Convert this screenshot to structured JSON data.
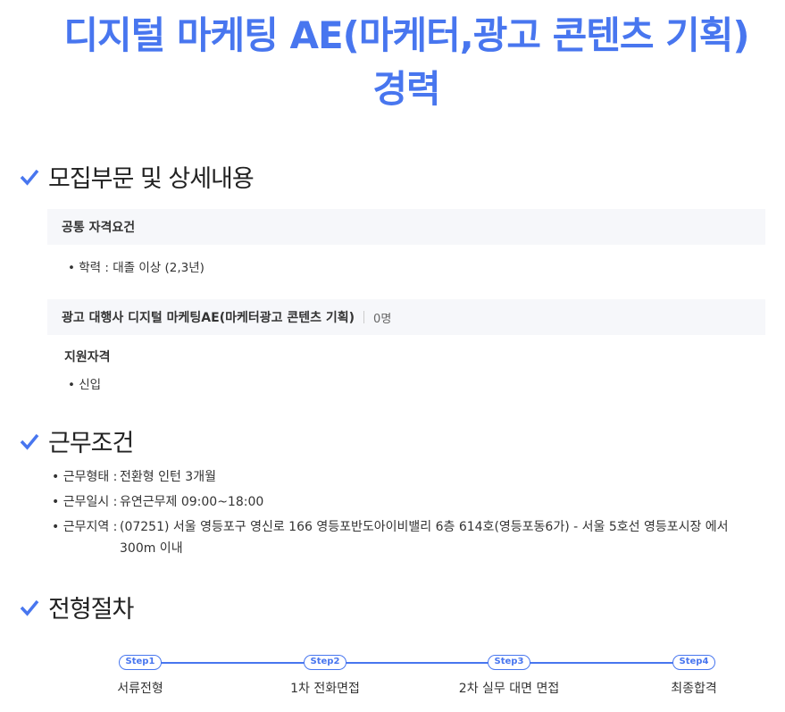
{
  "title": "디지털 마케팅 AE(마케터,광고 콘텐츠 기획) 경력",
  "accent": "#4876ef",
  "sections": {
    "recruit": "모집부문 및 상세내용",
    "conditions": "근무조건",
    "process": "전형절차"
  },
  "common": {
    "heading": "공통 자격요건",
    "items": [
      "• 학력 : 대졸 이상 (2,3년)"
    ]
  },
  "position": {
    "title": "광고 대행사 디지털 마케팅AE(마케터광고 콘텐츠 기획)",
    "count": "0명",
    "sub": "지원자격",
    "items": [
      "• 신입"
    ]
  },
  "conditions": [
    {
      "label": "• 근무형태 :",
      "value": "전환형 인턴 3개월"
    },
    {
      "label": "• 근무일시 :",
      "value": "유연근무제 09:00~18:00"
    },
    {
      "label": "• 근무지역 :",
      "value": "(07251) 서울 영등포구 영신로 166 영등포반도아이비밸리 6층 614호(영등포동6가) - 서울 5호선 영등포시장 에서 300m 이내"
    }
  ],
  "steps": [
    {
      "tag": "Step1",
      "label": "서류전형"
    },
    {
      "tag": "Step2",
      "label": "1차 전화면접"
    },
    {
      "tag": "Step3",
      "label": "2차 실무 대면 면접"
    },
    {
      "tag": "Step4",
      "label": "최종합격"
    }
  ]
}
